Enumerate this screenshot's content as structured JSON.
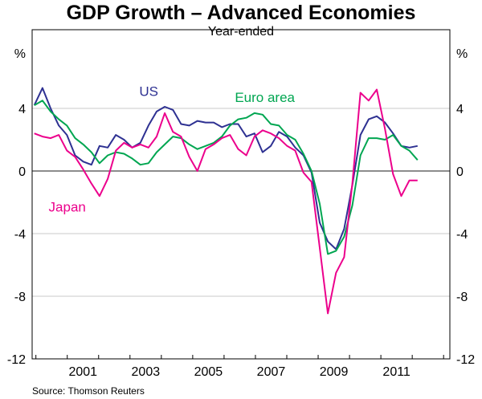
{
  "chart_data": {
    "type": "line",
    "title": "GDP Growth – Advanced Economies",
    "subtitle": "Year-ended",
    "source": "Source: Thomson Reuters",
    "ylabel_left": "%",
    "ylabel_right": "%",
    "ylim": [
      -12,
      8
    ],
    "y_ticks": [
      4,
      0,
      -4,
      -8,
      -12
    ],
    "y_tick_labels": [
      "4",
      "0",
      "-4",
      "-8",
      "-12"
    ],
    "xlim": [
      1999.88,
      2013.2
    ],
    "x_start": 1999.95,
    "x_step": 0.26,
    "x_tick_labels": [
      {
        "year": 2001,
        "label": "2001"
      },
      {
        "year": 2003,
        "label": "2003"
      },
      {
        "year": 2005,
        "label": "2005"
      },
      {
        "year": 2007,
        "label": "2007"
      },
      {
        "year": 2009,
        "label": "2009"
      },
      {
        "year": 2011,
        "label": "2011"
      }
    ],
    "grid": true,
    "series": [
      {
        "name": "US",
        "color": "#2e3192",
        "values": [
          4.2,
          5.3,
          4.0,
          2.9,
          2.3,
          1.0,
          0.6,
          0.4,
          1.6,
          1.5,
          2.3,
          2.0,
          1.5,
          1.8,
          2.9,
          3.8,
          4.1,
          3.9,
          3.0,
          2.9,
          3.2,
          3.1,
          3.1,
          2.8,
          3.0,
          3.0,
          2.2,
          2.4,
          1.2,
          1.6,
          2.5,
          2.2,
          1.5,
          1.0,
          -0.1,
          -3.3,
          -4.5,
          -5.0,
          -3.7,
          -0.9,
          2.3,
          3.3,
          3.5,
          3.1,
          2.4,
          1.6,
          1.5,
          1.6
        ]
      },
      {
        "name": "Euro area",
        "color": "#00a651",
        "values": [
          4.2,
          4.5,
          3.8,
          3.3,
          2.9,
          2.1,
          1.7,
          1.2,
          0.5,
          1.0,
          1.2,
          1.1,
          0.8,
          0.4,
          0.5,
          1.2,
          1.7,
          2.2,
          2.1,
          1.7,
          1.4,
          1.6,
          1.8,
          2.2,
          2.9,
          3.3,
          3.4,
          3.7,
          3.6,
          3.0,
          2.9,
          2.3,
          2.0,
          1.1,
          0.0,
          -2.1,
          -5.3,
          -5.1,
          -4.2,
          -2.2,
          1.0,
          2.1,
          2.1,
          2.0,
          2.3,
          1.6,
          1.3,
          0.7
        ]
      },
      {
        "name": "Japan",
        "color": "#ec008c",
        "values": [
          2.4,
          2.2,
          2.1,
          2.3,
          1.3,
          0.9,
          0.1,
          -0.8,
          -1.6,
          -0.5,
          1.3,
          1.8,
          1.5,
          1.7,
          1.5,
          2.2,
          3.7,
          2.5,
          2.2,
          0.9,
          0.0,
          1.4,
          1.7,
          2.1,
          2.3,
          1.4,
          1.0,
          2.2,
          2.6,
          2.4,
          2.1,
          1.6,
          1.3,
          -0.1,
          -0.7,
          -4.9,
          -9.1,
          -6.5,
          -5.5,
          -0.8,
          5.0,
          4.5,
          5.2,
          2.7,
          -0.2,
          -1.6,
          -0.6,
          -0.6
        ]
      }
    ],
    "annotations": [
      {
        "series": "US",
        "text": "US",
        "at_year": 2003.6,
        "at_value": 4.8
      },
      {
        "series": "Euro area",
        "text": "Euro area",
        "at_year": 2007.3,
        "at_value": 4.4
      },
      {
        "series": "Japan",
        "text": "Japan",
        "at_year": 2001.0,
        "at_value": -2.6
      }
    ]
  }
}
